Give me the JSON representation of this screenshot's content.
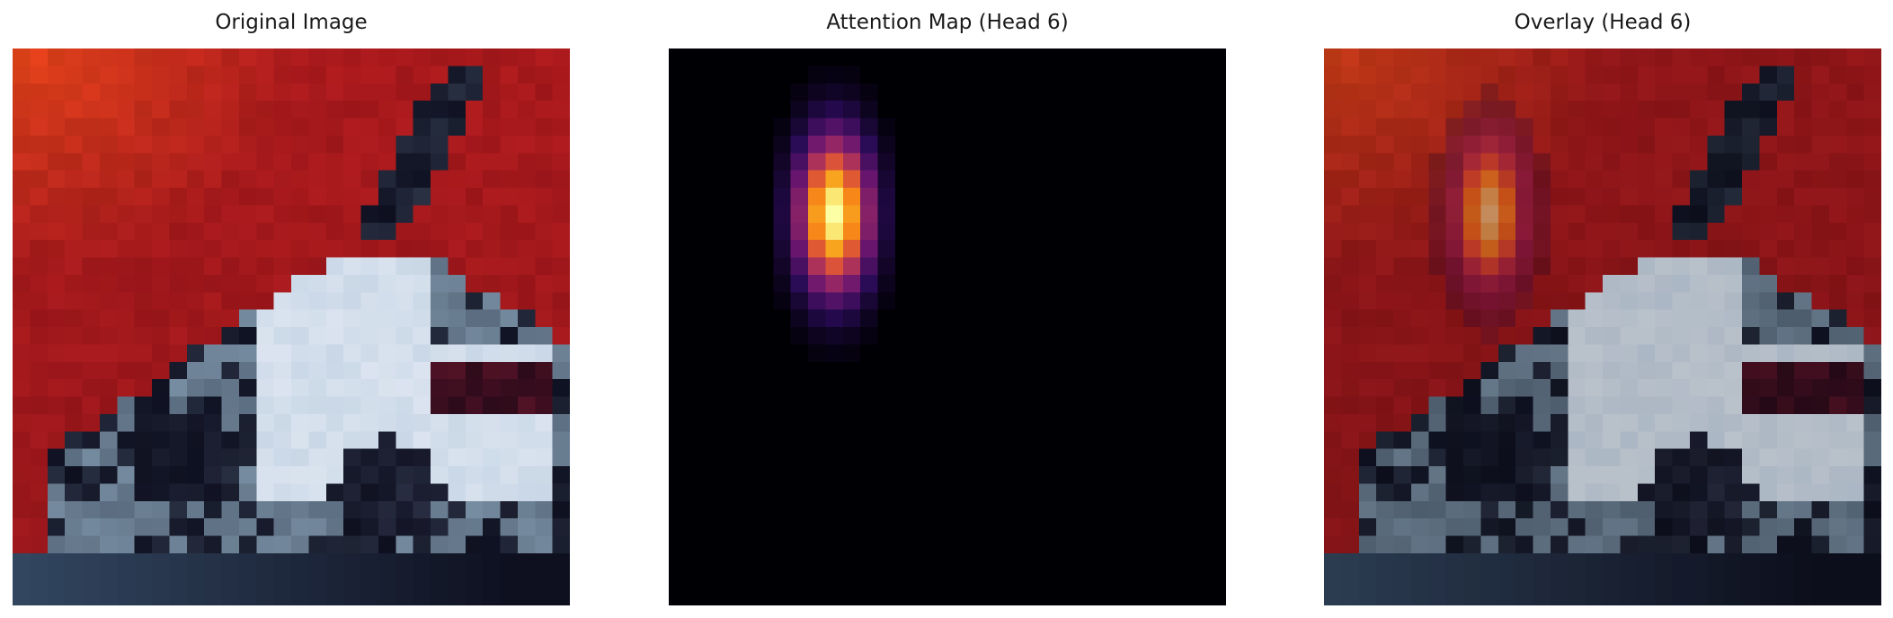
{
  "panels": [
    {
      "id": "original",
      "title": "Original Image"
    },
    {
      "id": "attention",
      "title": "Attention Map (Head 6)"
    },
    {
      "id": "overlay",
      "title": "Overlay (Head 6)"
    }
  ],
  "attention": {
    "colormap": "inferno",
    "peak_cell": {
      "col": 9,
      "row": 9
    },
    "overlay_alpha": 0.5
  },
  "grid": {
    "cols": 32,
    "rows": 32
  },
  "colors": {
    "background_red": "#a8191c",
    "sky_orange": "#e2421a",
    "car_white": "#c9d7e6",
    "car_dark": "#0e1020",
    "attention_peak": "#fcffa4"
  }
}
